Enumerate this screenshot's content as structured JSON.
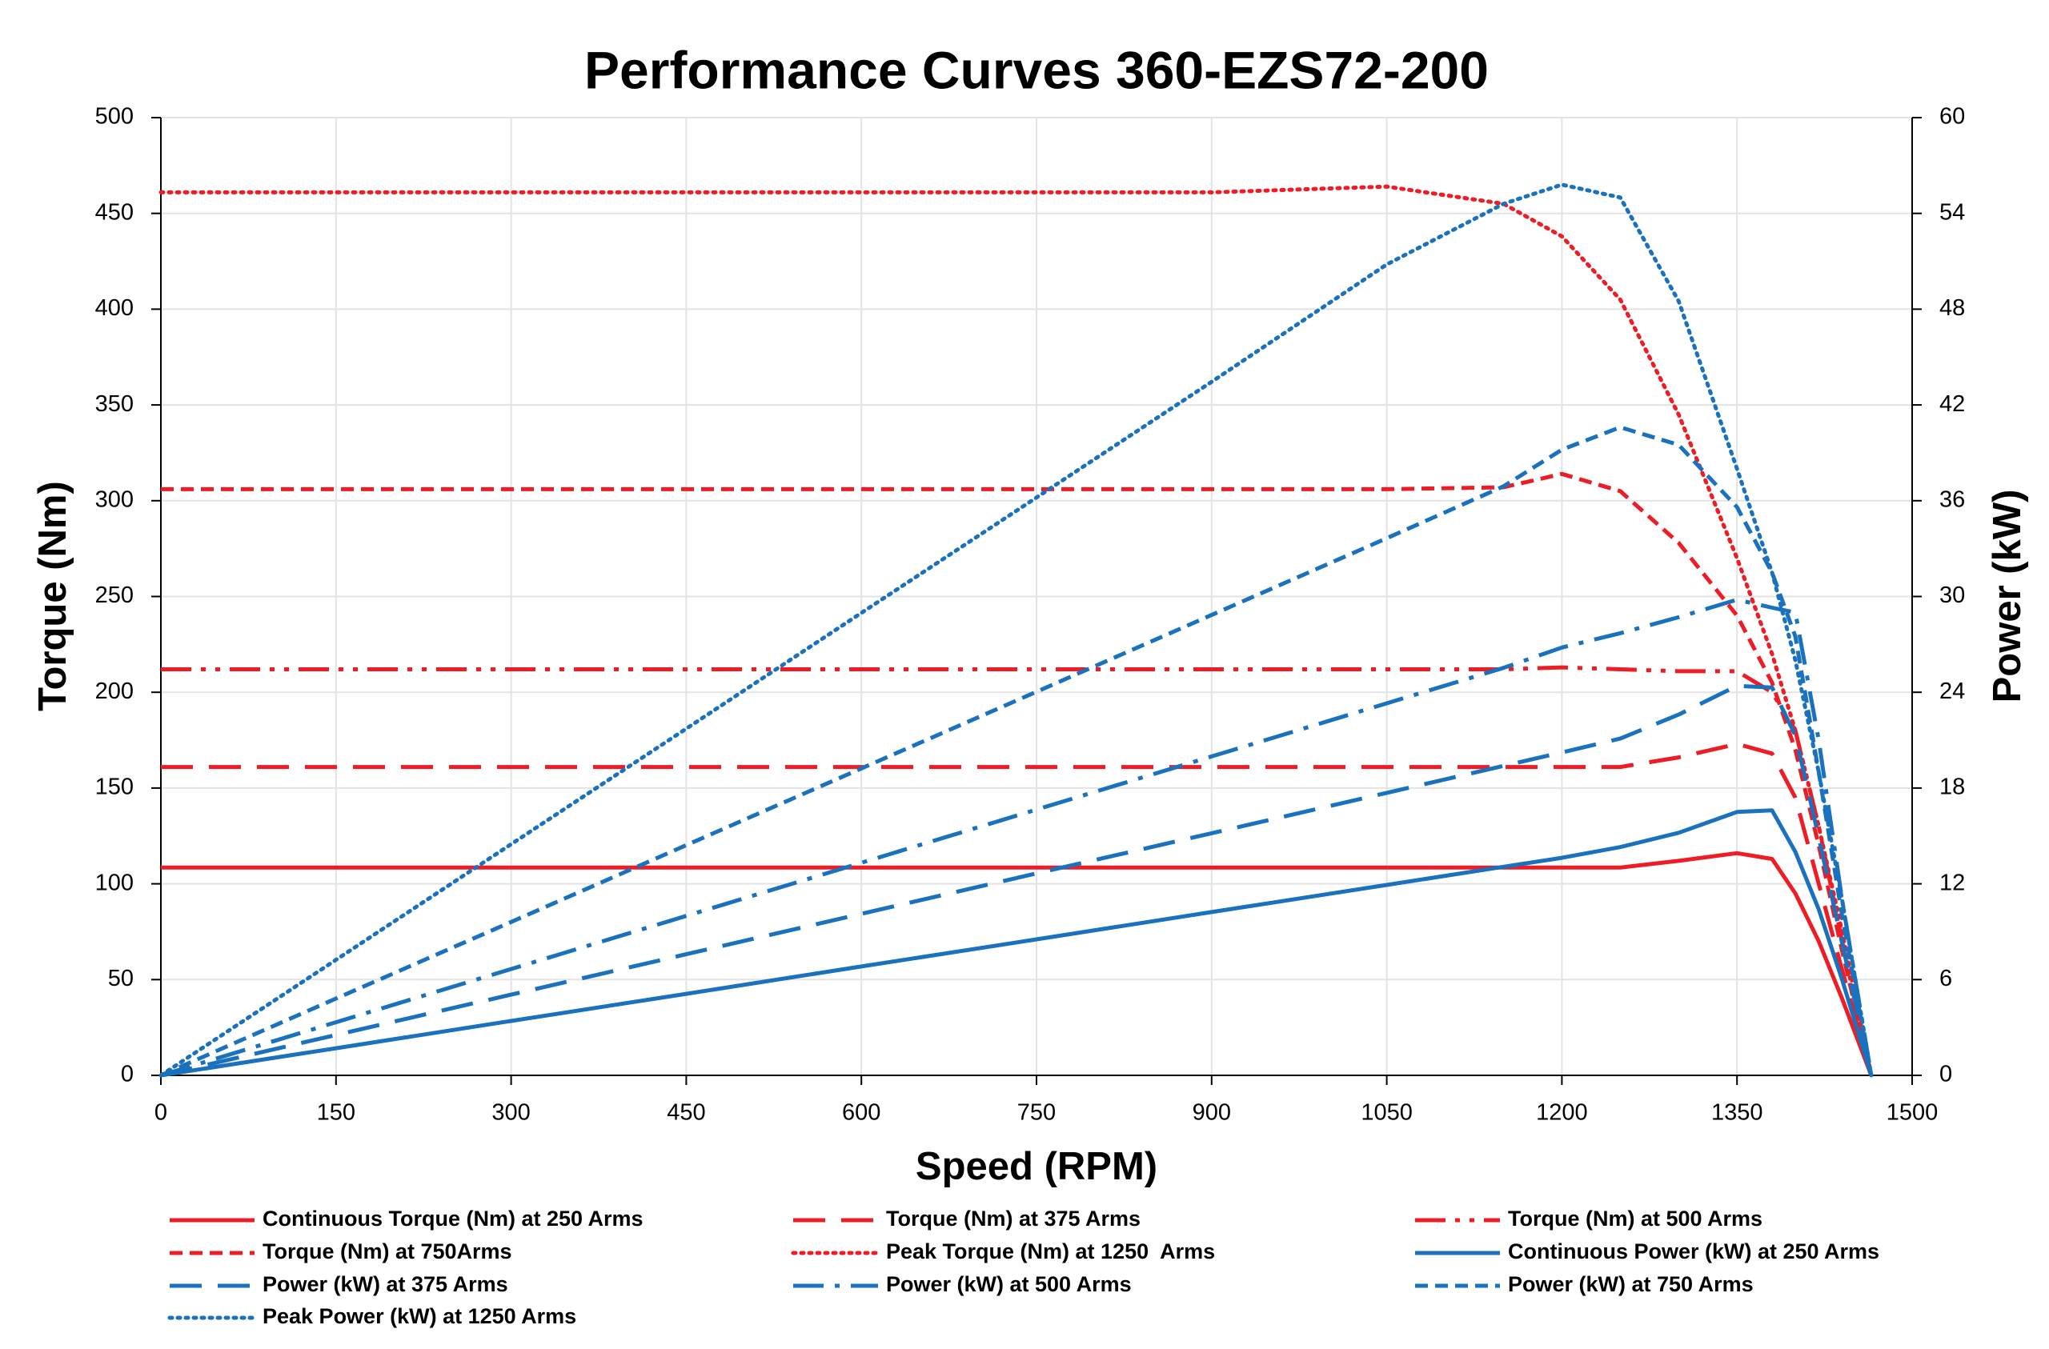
{
  "chart_data": {
    "type": "line",
    "title": "Performance Curves 360-EZS72-200",
    "x_label": "Speed (RPM)",
    "y_label": "Torque (Nm)",
    "y2_label": "Power (kW)",
    "x": [
      0,
      150,
      300,
      450,
      600,
      750,
      900,
      1050,
      1150,
      1200,
      1250,
      1300,
      1350,
      1380,
      1400,
      1420,
      1440,
      1465
    ],
    "xlim": [
      0,
      1500
    ],
    "xticks": [
      0,
      150,
      300,
      450,
      600,
      750,
      900,
      1050,
      1200,
      1350,
      1500
    ],
    "ylim": [
      0,
      500
    ],
    "yticks": [
      0,
      50,
      100,
      150,
      200,
      250,
      300,
      350,
      400,
      450,
      500
    ],
    "y2lim": [
      0,
      60
    ],
    "y2ticks": [
      0,
      6,
      12,
      18,
      24,
      30,
      36,
      42,
      48,
      54,
      60
    ],
    "grid": true,
    "series": [
      {
        "name": "Continuous Torque (Nm) at 250 Arms",
        "color": "#ee1c25",
        "dash": "solid",
        "values": [
          108.5,
          108.5,
          108.5,
          108.5,
          108.5,
          108.5,
          108.5,
          108.5,
          108.5,
          108.5,
          108.5,
          112,
          116,
          113,
          95,
          70,
          40,
          0
        ]
      },
      {
        "name": "Torque (Nm) at 375 Arms",
        "color": "#ee1c25",
        "dash": "long-dash",
        "values": [
          161,
          161,
          161,
          161,
          161,
          161,
          161,
          161,
          161,
          161,
          161,
          166,
          173,
          168,
          145,
          100,
          55,
          0
        ]
      },
      {
        "name": "Torque (Nm) at 500 Arms",
        "color": "#ee1c25",
        "dash": "dash-dot-dot",
        "values": [
          212,
          212,
          212,
          212,
          212,
          212,
          212,
          212,
          212,
          213,
          212,
          211,
          211,
          200,
          180,
          130,
          70,
          0
        ]
      },
      {
        "name": "Torque (Nm) at 750Arms",
        "color": "#ee1c25",
        "dash": "dash",
        "values": [
          306,
          306,
          306,
          306,
          306,
          306,
          306,
          306,
          307,
          314,
          305,
          278,
          240,
          205,
          170,
          120,
          65,
          0
        ]
      },
      {
        "name": "Peak Torque (Nm) at 1250  Arms",
        "color": "#ee1c25",
        "dash": "dot",
        "values": [
          461,
          461,
          461,
          461,
          461,
          461,
          461,
          464,
          455,
          438,
          405,
          345,
          270,
          220,
          180,
          130,
          75,
          0
        ]
      },
      {
        "name": "Continuous Power (kW) at 250 Arms",
        "color": "#1a71bd",
        "dash": "solid",
        "axis": "y2",
        "values": [
          0,
          1.7,
          3.41,
          5.11,
          6.82,
          8.52,
          10.23,
          11.93,
          13.07,
          13.63,
          14.3,
          15.2,
          16.5,
          16.6,
          14,
          10.4,
          6,
          0
        ]
      },
      {
        "name": "Power (kW) at 375 Arms",
        "color": "#1a71bd",
        "dash": "long-dash",
        "axis": "y2",
        "values": [
          0,
          2.53,
          5.06,
          7.59,
          10.12,
          12.65,
          15.17,
          17.7,
          19.39,
          20.23,
          21.1,
          22.6,
          24.4,
          24.3,
          21.3,
          14.9,
          8.3,
          0
        ]
      },
      {
        "name": "Power (kW) at 500 Arms",
        "color": "#1a71bd",
        "dash": "dash-dot",
        "axis": "y2",
        "values": [
          0,
          3.33,
          6.66,
          9.99,
          13.32,
          16.65,
          19.98,
          23.31,
          25.53,
          26.8,
          27.7,
          28.7,
          29.8,
          29.3,
          29,
          21,
          11,
          0
        ]
      },
      {
        "name": "Power (kW) at 750 Arms",
        "color": "#1a71bd",
        "dash": "dash",
        "axis": "y2",
        "values": [
          0,
          4.81,
          9.61,
          14.42,
          19.23,
          24.03,
          28.84,
          33.65,
          36.9,
          39.2,
          40.6,
          39.5,
          35.6,
          31.5,
          27.5,
          19,
          10,
          0
        ]
      },
      {
        "name": "Peak Power (kW) at 1250 Arms",
        "color": "#1a71bd",
        "dash": "dot",
        "axis": "y2",
        "values": [
          0,
          7.24,
          14.48,
          21.72,
          28.97,
          36.2,
          43.45,
          50.8,
          54.6,
          55.8,
          55,
          48.5,
          38,
          31.5,
          26,
          19,
          11,
          0
        ]
      }
    ]
  }
}
